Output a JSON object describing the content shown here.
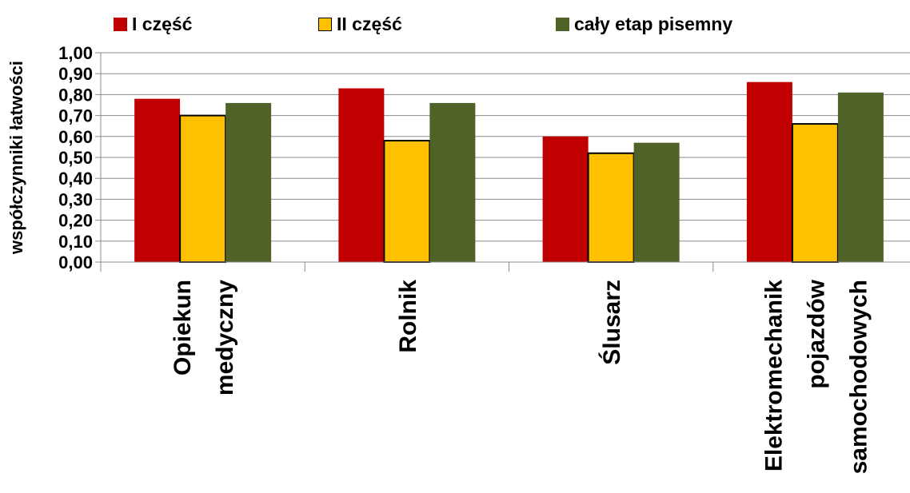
{
  "chart_data": {
    "type": "bar",
    "categories": [
      [
        "Opiekun",
        "medyczny"
      ],
      [
        "Rolnik"
      ],
      [
        "Ślusarz"
      ],
      [
        "Elektromechanik",
        "pojazdów",
        "samochodowych"
      ]
    ],
    "series": [
      {
        "name": "I część",
        "color": "#C00000",
        "values": [
          0.78,
          0.83,
          0.6,
          0.86
        ]
      },
      {
        "name": "II część",
        "color": "#FFC000",
        "values": [
          0.7,
          0.58,
          0.52,
          0.66
        ]
      },
      {
        "name": "cały etap pisemny",
        "color": "#4F6228",
        "values": [
          0.76,
          0.76,
          0.57,
          0.81
        ]
      }
    ],
    "ylabel": "współczynniki łatwości",
    "ylim": [
      0,
      1.0
    ],
    "yticks": [
      "0,00",
      "0,10",
      "0,20",
      "0,30",
      "0,40",
      "0,50",
      "0,60",
      "0,70",
      "0,80",
      "0,90",
      "1,00"
    ],
    "grid": true,
    "legend_position": "top"
  }
}
